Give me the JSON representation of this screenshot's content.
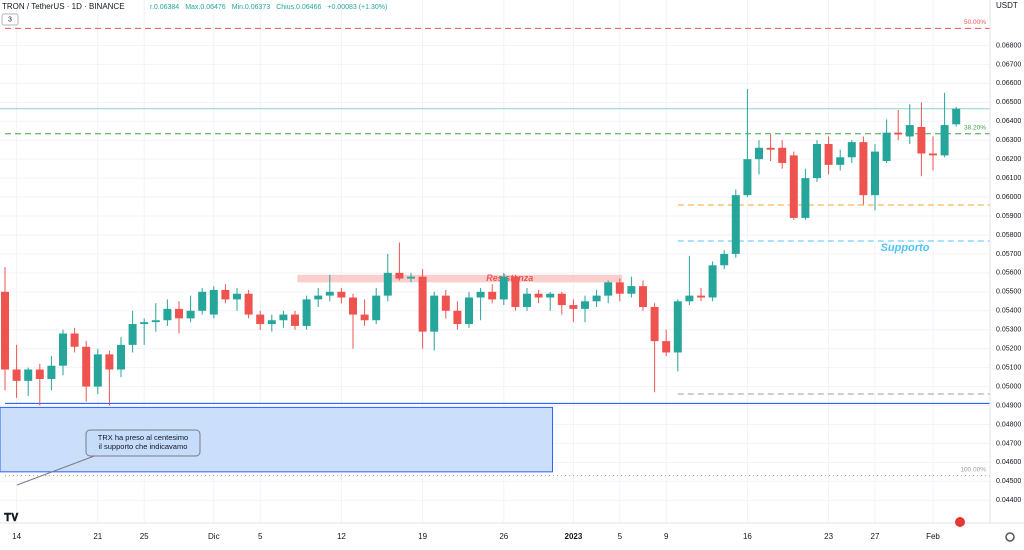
{
  "chart_data": {
    "type": "candlestick",
    "symbol": "TRON / TetherUS · 1D · BINANCE",
    "legend_items": [
      "r.0.06384",
      "Max.0.06476",
      "Min.0.06373",
      "Chius.0.06466",
      "+0.00083 (+1.30%)"
    ],
    "badge": "3",
    "currency": "USDT",
    "up_color": "#26a69a",
    "down_color": "#ef5350",
    "categories": [
      null,
      "14",
      null,
      null,
      null,
      null,
      null,
      null,
      "21",
      null,
      null,
      null,
      "25",
      null,
      null,
      null,
      null,
      null,
      "Dic",
      null,
      null,
      null,
      "5",
      null,
      null,
      null,
      null,
      null,
      null,
      "12",
      null,
      null,
      null,
      null,
      null,
      null,
      "19",
      null,
      null,
      null,
      null,
      null,
      null,
      "26",
      null,
      null,
      null,
      null,
      null,
      "2023",
      null,
      null,
      null,
      "5",
      null,
      null,
      null,
      "9",
      null,
      null,
      null,
      null,
      null,
      null,
      "16",
      null,
      null,
      null,
      null,
      null,
      null,
      "23",
      null,
      null,
      null,
      "27",
      null,
      null,
      null,
      null,
      "Feb",
      null,
      null
    ],
    "open": [
      0.055,
      0.0509,
      0.0503,
      0.0509,
      0.0504,
      0.0511,
      0.0528,
      0.0521,
      0.05,
      0.0517,
      0.0509,
      0.0522,
      0.0533,
      0.0534,
      0.0535,
      0.0541,
      0.0536,
      0.054,
      0.0538,
      0.0551,
      0.0546,
      0.0549,
      0.0538,
      0.0533,
      0.0535,
      0.0538,
      0.0532,
      0.0546,
      0.0548,
      0.055,
      0.0547,
      0.0538,
      0.0535,
      0.0548,
      0.056,
      0.0557,
      0.0558,
      0.0529,
      0.0548,
      0.054,
      0.0533,
      0.0547,
      0.055,
      0.0546,
      0.0558,
      0.0542,
      0.0549,
      0.0547,
      0.0549,
      0.0543,
      0.0541,
      0.0545,
      0.0548,
      0.0555,
      0.0549,
      0.0553,
      0.0542,
      0.0524,
      0.0518,
      0.0545,
      0.0548,
      0.0547,
      0.0564,
      0.057,
      0.0601,
      0.062,
      0.0626,
      0.0626,
      0.0622,
      0.0589,
      0.061,
      0.0628,
      0.0617,
      0.0621,
      0.0629,
      0.0601,
      0.0619,
      0.0634,
      0.0632,
      0.0637,
      0.0623,
      0.0622,
      0.06384
    ],
    "high": [
      0.0563,
      0.0522,
      0.051,
      0.0512,
      0.0516,
      0.053,
      0.0531,
      0.0524,
      0.052,
      0.0519,
      0.0526,
      0.054,
      0.0536,
      0.0544,
      0.0546,
      0.0545,
      0.0548,
      0.0552,
      0.0553,
      0.0554,
      0.0552,
      0.0551,
      0.054,
      0.0538,
      0.054,
      0.054,
      0.0548,
      0.0552,
      0.0559,
      0.0552,
      0.0549,
      0.0546,
      0.0552,
      0.057,
      0.0576,
      0.056,
      0.0562,
      0.055,
      0.0551,
      0.0545,
      0.055,
      0.0552,
      0.0554,
      0.056,
      0.0559,
      0.0552,
      0.0551,
      0.055,
      0.055,
      0.0546,
      0.0548,
      0.0551,
      0.0556,
      0.0557,
      0.0558,
      0.0556,
      0.0544,
      0.053,
      0.0546,
      0.0569,
      0.0552,
      0.0566,
      0.0572,
      0.0604,
      0.0657,
      0.063,
      0.0633,
      0.063,
      0.0624,
      0.0615,
      0.063,
      0.0632,
      0.0625,
      0.063,
      0.0632,
      0.0628,
      0.0641,
      0.0646,
      0.0649,
      0.065,
      0.0632,
      0.0655,
      0.06476
    ],
    "low": [
      0.0498,
      0.0494,
      0.0495,
      0.049,
      0.0498,
      0.0506,
      0.0518,
      0.0492,
      0.0496,
      0.049,
      0.0505,
      0.0518,
      0.0522,
      0.0529,
      0.0532,
      0.0528,
      0.0534,
      0.0538,
      0.0536,
      0.0544,
      0.054,
      0.0536,
      0.053,
      0.0529,
      0.0531,
      0.053,
      0.053,
      0.0542,
      0.0545,
      0.0544,
      0.052,
      0.0532,
      0.0533,
      0.0545,
      0.0556,
      0.0555,
      0.052,
      0.0519,
      0.0536,
      0.053,
      0.0531,
      0.0535,
      0.0544,
      0.0543,
      0.054,
      0.054,
      0.0544,
      0.054,
      0.0538,
      0.0534,
      0.0534,
      0.0542,
      0.0544,
      0.0545,
      0.0547,
      0.054,
      0.0497,
      0.0516,
      0.0508,
      0.0543,
      0.0545,
      0.0545,
      0.0562,
      0.0568,
      0.06,
      0.0612,
      0.0619,
      0.0615,
      0.0588,
      0.0588,
      0.0608,
      0.0612,
      0.0614,
      0.0618,
      0.0596,
      0.0593,
      0.0618,
      0.063,
      0.0628,
      0.0611,
      0.0614,
      0.0621,
      0.06373
    ],
    "close": [
      0.0509,
      0.0503,
      0.0509,
      0.0504,
      0.0511,
      0.0528,
      0.0521,
      0.05,
      0.0517,
      0.0509,
      0.0522,
      0.0533,
      0.0534,
      0.0535,
      0.0541,
      0.0536,
      0.054,
      0.055,
      0.0551,
      0.0546,
      0.0549,
      0.0538,
      0.0533,
      0.0535,
      0.0538,
      0.0532,
      0.0546,
      0.0548,
      0.055,
      0.0547,
      0.0538,
      0.0535,
      0.0548,
      0.056,
      0.0557,
      0.0558,
      0.0529,
      0.0548,
      0.054,
      0.0533,
      0.0547,
      0.055,
      0.0546,
      0.0558,
      0.0542,
      0.0549,
      0.0547,
      0.0549,
      0.0543,
      0.0541,
      0.0545,
      0.0548,
      0.0555,
      0.0549,
      0.0553,
      0.0542,
      0.0524,
      0.0518,
      0.0545,
      0.0548,
      0.0547,
      0.0564,
      0.057,
      0.0601,
      0.062,
      0.0626,
      0.0625,
      0.0618,
      0.0589,
      0.061,
      0.0628,
      0.0617,
      0.0621,
      0.0629,
      0.0601,
      0.0624,
      0.0634,
      0.0633,
      0.0638,
      0.0623,
      0.0622,
      0.0638,
      0.06466
    ],
    "ylim": [
      0.0428,
      0.0704
    ],
    "yticks": [
      {
        "value": 0.044,
        "label": "0.04400"
      },
      {
        "value": 0.045,
        "label": "0.04500"
      },
      {
        "value": 0.046,
        "label": "0.04600"
      },
      {
        "value": 0.047,
        "label": "0.04700"
      },
      {
        "value": 0.048,
        "label": "0.04800"
      },
      {
        "value": 0.049,
        "label": "0.04900"
      },
      {
        "value": 0.05,
        "label": "0.05000"
      },
      {
        "value": 0.051,
        "label": "0.05100"
      },
      {
        "value": 0.052,
        "label": "0.05200"
      },
      {
        "value": 0.053,
        "label": "0.05300"
      },
      {
        "value": 0.054,
        "label": "0.05400"
      },
      {
        "value": 0.055,
        "label": "0.05500"
      },
      {
        "value": 0.056,
        "label": "0.05600"
      },
      {
        "value": 0.057,
        "label": "0.05700"
      },
      {
        "value": 0.058,
        "label": "0.05800"
      },
      {
        "value": 0.059,
        "label": "0.05900"
      },
      {
        "value": 0.06,
        "label": "0.06000"
      },
      {
        "value": 0.061,
        "label": "0.06100"
      },
      {
        "value": 0.062,
        "label": "0.06200"
      },
      {
        "value": 0.063,
        "label": "0.06300"
      },
      {
        "value": 0.064,
        "label": "0.06400"
      },
      {
        "value": 0.065,
        "label": "0.06500"
      },
      {
        "value": 0.066,
        "label": "0.06600"
      },
      {
        "value": 0.067,
        "label": "0.06700"
      },
      {
        "value": 0.068,
        "label": "0.06800"
      }
    ],
    "levels": [
      {
        "value": 0.0689,
        "color": "#ef5350",
        "label": "50.00%",
        "start": 0,
        "style": "dashed"
      },
      {
        "value": 0.06334,
        "color": "#43a047",
        "label": "38.20%",
        "start": 0,
        "style": "dashed"
      },
      {
        "value": 0.05958,
        "color": "#f5a623",
        "start": 58,
        "style": "dashed"
      },
      {
        "value": 0.05768,
        "color": "#4fc3f7",
        "start": 58,
        "style": "dashed"
      },
      {
        "value": 0.04961,
        "color": "#9e9e9e",
        "start": 58,
        "style": "dashed"
      },
      {
        "value": 0.04911,
        "color": "#2962ff",
        "start": 0,
        "style": "solid"
      },
      {
        "value": 0.0453,
        "color": "#9e9e9e",
        "label": "100.00%",
        "start": 0,
        "style": "dotted"
      }
    ],
    "zones": [
      {
        "from": 0.0555,
        "to": 0.0559,
        "start": 25.2,
        "end": 53.2,
        "fill": "#f8c9c8",
        "label": "Resistenza",
        "label_color": "#ef5350"
      },
      {
        "from": 0.0455,
        "to": 0.0489,
        "start": -0.5,
        "end": 47.2,
        "fill": "#c5dcfb",
        "stroke": "#2962ff"
      }
    ],
    "support_label": "Supporto",
    "callout": [
      "TRX ha preso al centesimo",
      "il supporto che indicavamo"
    ]
  }
}
